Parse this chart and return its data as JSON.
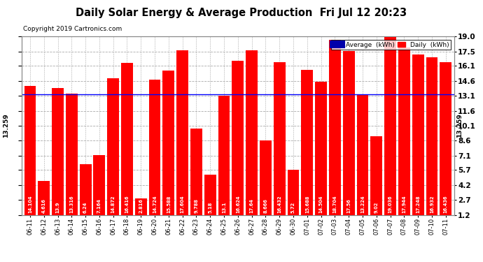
{
  "title": "Daily Solar Energy & Average Production  Fri Jul 12 20:23",
  "copyright": "Copyright 2019 Cartronics.com",
  "categories": [
    "06-11",
    "06-12",
    "06-13",
    "06-14",
    "06-15",
    "06-16",
    "06-17",
    "06-18",
    "06-19",
    "06-20",
    "06-21",
    "06-22",
    "06-23",
    "06-24",
    "06-25",
    "06-26",
    "06-27",
    "06-28",
    "06-29",
    "06-30",
    "07-01",
    "07-02",
    "07-03",
    "07-04",
    "07-05",
    "07-06",
    "07-07",
    "07-08",
    "07-09",
    "07-10",
    "07-11"
  ],
  "values": [
    14.104,
    4.616,
    13.9,
    13.316,
    6.24,
    7.164,
    14.872,
    16.416,
    2.816,
    14.724,
    15.588,
    17.604,
    9.788,
    5.18,
    13.1,
    16.624,
    17.64,
    8.666,
    16.432,
    5.72,
    15.688,
    14.504,
    18.704,
    17.56,
    13.224,
    9.02,
    19.036,
    17.944,
    17.248,
    16.932,
    16.436
  ],
  "average": 13.259,
  "bar_color": "#ff0000",
  "average_line_color": "#0000ff",
  "background_color": "#ffffff",
  "plot_bg_color": "#ffffff",
  "grid_color": "#aaaaaa",
  "ylim": [
    1.2,
    19.0
  ],
  "yticks": [
    1.2,
    2.7,
    4.2,
    5.7,
    7.1,
    8.6,
    10.1,
    11.6,
    13.1,
    14.6,
    16.1,
    17.5,
    19.0
  ],
  "title_fontsize": 10.5,
  "copyright_fontsize": 6.5,
  "bar_label_fontsize": 4.8,
  "xlabel_fontsize": 6.0,
  "ylabel_right_fontsize": 7.5,
  "legend_avg_color": "#0000aa",
  "legend_daily_color": "#ff0000",
  "avg_label": "Average  (kWh)",
  "daily_label": "Daily  (kWh)",
  "avg_text": "13.259"
}
